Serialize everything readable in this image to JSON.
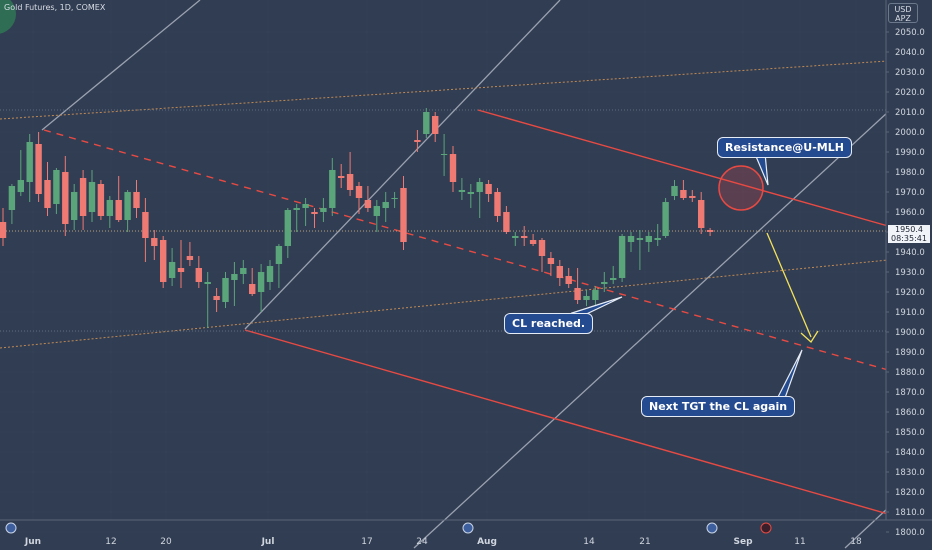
{
  "header": {
    "ticker": "Gold Futures, 1D, COMEX"
  },
  "currency_box": {
    "line1": "USD",
    "line2": "APZ"
  },
  "price_tag": {
    "price": "1950.4",
    "countdown": "08:35:41"
  },
  "annotations": {
    "resistance": "Resistance@U-MLH",
    "cl_reached": "CL reached.",
    "next_target": "Next TGT the CL again"
  },
  "colors": {
    "background": "#313d52",
    "up": "#5aa57a",
    "down": "#ee7a73",
    "pitchfork_red": "#e84a43",
    "arrow": "#f3e25a",
    "median_line": "#8f98a8"
  },
  "chart_data": {
    "type": "candlestick",
    "title": "Gold Futures, 1D, COMEX",
    "ylim": [
      1800,
      2060
    ],
    "y_ticks": [
      1800,
      1810,
      1820,
      1830,
      1840,
      1850,
      1860,
      1870,
      1880,
      1890,
      1900,
      1910,
      1920,
      1930,
      1940,
      1950,
      1960,
      1970,
      1980,
      1990,
      2000,
      2010,
      2020,
      2030,
      2040,
      2050
    ],
    "x_tick_labels": [
      "Jun",
      "12",
      "20",
      "Jul",
      "17",
      "24",
      "Aug",
      "14",
      "21",
      "Sep",
      "11",
      "18"
    ],
    "last_price": 1950.4,
    "candles": [
      {
        "o": 1955,
        "h": 1962,
        "l": 1943,
        "c": 1947
      },
      {
        "o": 1961,
        "h": 1974,
        "l": 1954,
        "c": 1973
      },
      {
        "o": 1970,
        "h": 1991,
        "l": 1968,
        "c": 1976
      },
      {
        "o": 1975,
        "h": 1999,
        "l": 1965,
        "c": 1995
      },
      {
        "o": 1994,
        "h": 2000,
        "l": 1965,
        "c": 1969
      },
      {
        "o": 1976,
        "h": 1985,
        "l": 1958,
        "c": 1962
      },
      {
        "o": 1964,
        "h": 1982,
        "l": 1959,
        "c": 1981
      },
      {
        "o": 1980,
        "h": 1988,
        "l": 1948,
        "c": 1954
      },
      {
        "o": 1956,
        "h": 1974,
        "l": 1951,
        "c": 1970
      },
      {
        "o": 1977,
        "h": 1981,
        "l": 1951,
        "c": 1958
      },
      {
        "o": 1960,
        "h": 1981,
        "l": 1955,
        "c": 1975
      },
      {
        "o": 1974,
        "h": 1976,
        "l": 1956,
        "c": 1958
      },
      {
        "o": 1958,
        "h": 1968,
        "l": 1952,
        "c": 1966
      },
      {
        "o": 1966,
        "h": 1978,
        "l": 1955,
        "c": 1956
      },
      {
        "o": 1956,
        "h": 1971,
        "l": 1950,
        "c": 1970
      },
      {
        "o": 1970,
        "h": 1976,
        "l": 1957,
        "c": 1962
      },
      {
        "o": 1960,
        "h": 1967,
        "l": 1935,
        "c": 1947
      },
      {
        "o": 1947,
        "h": 1951,
        "l": 1936,
        "c": 1943
      },
      {
        "o": 1946,
        "h": 1948,
        "l": 1922,
        "c": 1925
      },
      {
        "o": 1927,
        "h": 1942,
        "l": 1923,
        "c": 1935
      },
      {
        "o": 1932,
        "h": 1946,
        "l": 1922,
        "c": 1930
      },
      {
        "o": 1938,
        "h": 1945,
        "l": 1933,
        "c": 1936
      },
      {
        "o": 1932,
        "h": 1938,
        "l": 1922,
        "c": 1925
      },
      {
        "o": 1924,
        "h": 1930,
        "l": 1902,
        "c": 1925
      },
      {
        "o": 1918,
        "h": 1922,
        "l": 1910,
        "c": 1916
      },
      {
        "o": 1915,
        "h": 1930,
        "l": 1912,
        "c": 1927
      },
      {
        "o": 1926,
        "h": 1935,
        "l": 1913,
        "c": 1929
      },
      {
        "o": 1929,
        "h": 1936,
        "l": 1924,
        "c": 1932
      },
      {
        "o": 1924,
        "h": 1932,
        "l": 1918,
        "c": 1919
      },
      {
        "o": 1920,
        "h": 1934,
        "l": 1910,
        "c": 1930
      },
      {
        "o": 1925,
        "h": 1936,
        "l": 1921,
        "c": 1933
      },
      {
        "o": 1934,
        "h": 1944,
        "l": 1922,
        "c": 1943
      },
      {
        "o": 1943,
        "h": 1962,
        "l": 1937,
        "c": 1961
      },
      {
        "o": 1961,
        "h": 1964,
        "l": 1950,
        "c": 1962
      },
      {
        "o": 1962,
        "h": 1967,
        "l": 1953,
        "c": 1964
      },
      {
        "o": 1960,
        "h": 1962,
        "l": 1952,
        "c": 1959
      },
      {
        "o": 1960,
        "h": 1967,
        "l": 1955,
        "c": 1962
      },
      {
        "o": 1962,
        "h": 1987,
        "l": 1958,
        "c": 1981
      },
      {
        "o": 1978,
        "h": 1984,
        "l": 1972,
        "c": 1977
      },
      {
        "o": 1979,
        "h": 1990,
        "l": 1968,
        "c": 1971
      },
      {
        "o": 1973,
        "h": 1975,
        "l": 1959,
        "c": 1967
      },
      {
        "o": 1966,
        "h": 1973,
        "l": 1960,
        "c": 1962
      },
      {
        "o": 1958,
        "h": 1966,
        "l": 1950,
        "c": 1963
      },
      {
        "o": 1962,
        "h": 1970,
        "l": 1955,
        "c": 1965
      },
      {
        "o": 1967,
        "h": 1970,
        "l": 1962,
        "c": 1967
      },
      {
        "o": 1972,
        "h": 1978,
        "l": 1941,
        "c": 1945
      },
      {
        "o": 1996,
        "h": 2001,
        "l": 1990,
        "c": 1995
      },
      {
        "o": 1999,
        "h": 2012,
        "l": 1997,
        "c": 2010
      },
      {
        "o": 2008,
        "h": 2010,
        "l": 1995,
        "c": 1999
      },
      {
        "o": 1989,
        "h": 1999,
        "l": 1978,
        "c": 1989
      },
      {
        "o": 1989,
        "h": 1993,
        "l": 1970,
        "c": 1975
      },
      {
        "o": 1970,
        "h": 1977,
        "l": 1966,
        "c": 1971
      },
      {
        "o": 1969,
        "h": 1974,
        "l": 1962,
        "c": 1970
      },
      {
        "o": 1970,
        "h": 1977,
        "l": 1957,
        "c": 1975
      },
      {
        "o": 1974,
        "h": 1976,
        "l": 1965,
        "c": 1969
      },
      {
        "o": 1970,
        "h": 1972,
        "l": 1955,
        "c": 1958
      },
      {
        "o": 1960,
        "h": 1963,
        "l": 1949,
        "c": 1950
      },
      {
        "o": 1947,
        "h": 1950,
        "l": 1943,
        "c": 1948
      },
      {
        "o": 1948,
        "h": 1953,
        "l": 1943,
        "c": 1947
      },
      {
        "o": 1946,
        "h": 1949,
        "l": 1943,
        "c": 1944
      },
      {
        "o": 1946,
        "h": 1947,
        "l": 1930,
        "c": 1938
      },
      {
        "o": 1937,
        "h": 1940,
        "l": 1928,
        "c": 1934
      },
      {
        "o": 1933,
        "h": 1936,
        "l": 1923,
        "c": 1927
      },
      {
        "o": 1928,
        "h": 1932,
        "l": 1922,
        "c": 1924
      },
      {
        "o": 1922,
        "h": 1932,
        "l": 1914,
        "c": 1916
      },
      {
        "o": 1916,
        "h": 1921,
        "l": 1913,
        "c": 1918
      },
      {
        "o": 1916,
        "h": 1923,
        "l": 1913,
        "c": 1921
      },
      {
        "o": 1924,
        "h": 1930,
        "l": 1920,
        "c": 1925
      },
      {
        "o": 1926,
        "h": 1933,
        "l": 1924,
        "c": 1927
      },
      {
        "o": 1927,
        "h": 1949,
        "l": 1925,
        "c": 1948
      },
      {
        "o": 1945,
        "h": 1950,
        "l": 1940,
        "c": 1948
      },
      {
        "o": 1946,
        "h": 1951,
        "l": 1931,
        "c": 1947
      },
      {
        "o": 1945,
        "h": 1950,
        "l": 1940,
        "c": 1948
      },
      {
        "o": 1946,
        "h": 1954,
        "l": 1943,
        "c": 1947
      },
      {
        "o": 1948,
        "h": 1967,
        "l": 1947,
        "c": 1965
      },
      {
        "o": 1968,
        "h": 1976,
        "l": 1966,
        "c": 1973
      },
      {
        "o": 1971,
        "h": 1976,
        "l": 1966,
        "c": 1967
      },
      {
        "o": 1968,
        "h": 1971,
        "l": 1965,
        "c": 1967
      },
      {
        "o": 1966,
        "h": 1970,
        "l": 1949,
        "c": 1952
      },
      {
        "o": 1951,
        "h": 1952,
        "l": 1948,
        "c": 1950
      }
    ]
  }
}
